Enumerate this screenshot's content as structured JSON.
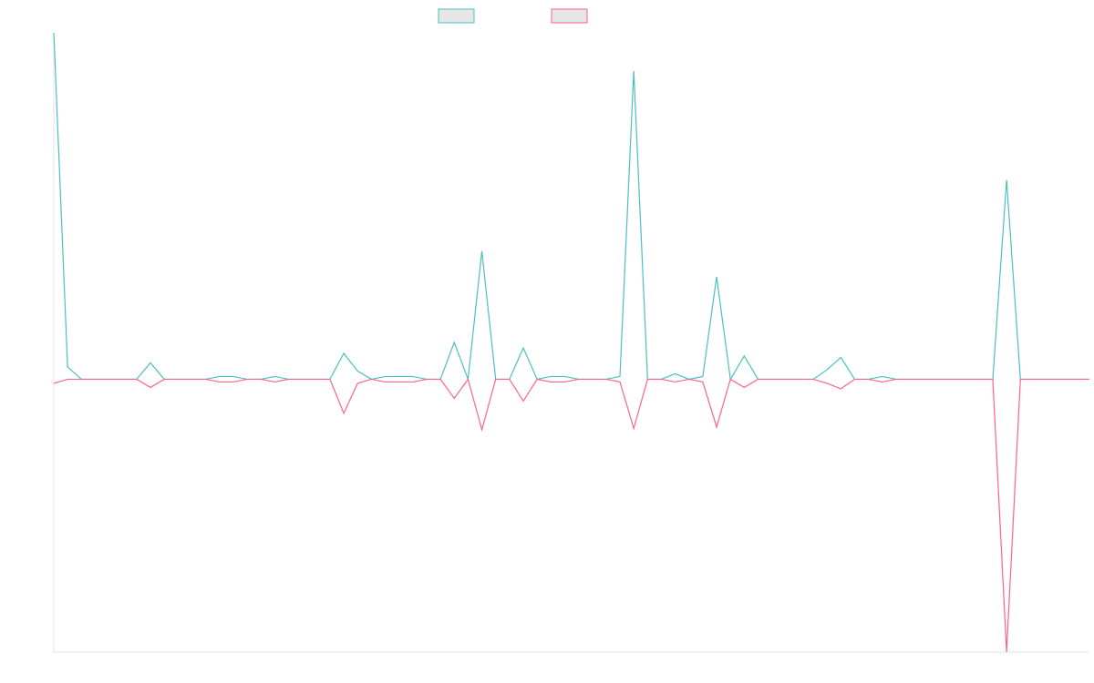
{
  "chart_data": {
    "type": "line",
    "title": "",
    "xlabel": "",
    "ylabel": "",
    "x_count": 76,
    "ylim": [
      -1,
      1.27
    ],
    "grid": false,
    "legend_position": "top-center",
    "colors": {
      "positive": "#4bc0c0",
      "negative": "#ff6384",
      "legend_fill": "#e6e6e6",
      "axis": "#e6e6e6"
    },
    "series": [
      {
        "name": "",
        "color": "#4bc0c0",
        "points": [
          {
            "x": 0,
            "y": 1.27
          },
          {
            "x": 1,
            "y": 0.045
          },
          {
            "x": 7,
            "y": 0.06
          },
          {
            "x": 12,
            "y": 0.01
          },
          {
            "x": 13,
            "y": 0.01
          },
          {
            "x": 16,
            "y": 0.01
          },
          {
            "x": 21,
            "y": 0.095
          },
          {
            "x": 22,
            "y": 0.03
          },
          {
            "x": 24,
            "y": 0.01
          },
          {
            "x": 25,
            "y": 0.01
          },
          {
            "x": 26,
            "y": 0.01
          },
          {
            "x": 29,
            "y": 0.135
          },
          {
            "x": 31,
            "y": 0.47
          },
          {
            "x": 34,
            "y": 0.115
          },
          {
            "x": 36,
            "y": 0.01
          },
          {
            "x": 37,
            "y": 0.01
          },
          {
            "x": 41,
            "y": 0.01
          },
          {
            "x": 42,
            "y": 1.13
          },
          {
            "x": 45,
            "y": 0.02
          },
          {
            "x": 47,
            "y": 0.01
          },
          {
            "x": 48,
            "y": 0.375
          },
          {
            "x": 50,
            "y": 0.085
          },
          {
            "x": 56,
            "y": 0.035
          },
          {
            "x": 57,
            "y": 0.08
          },
          {
            "x": 60,
            "y": 0.01
          },
          {
            "x": 69,
            "y": 0.73
          }
        ]
      },
      {
        "name": "",
        "color": "#ff6384",
        "points": [
          {
            "x": 0,
            "y": -0.015
          },
          {
            "x": 7,
            "y": -0.03
          },
          {
            "x": 12,
            "y": -0.01
          },
          {
            "x": 13,
            "y": -0.01
          },
          {
            "x": 16,
            "y": -0.01
          },
          {
            "x": 21,
            "y": -0.125
          },
          {
            "x": 22,
            "y": -0.015
          },
          {
            "x": 24,
            "y": -0.01
          },
          {
            "x": 25,
            "y": -0.01
          },
          {
            "x": 26,
            "y": -0.01
          },
          {
            "x": 29,
            "y": -0.07
          },
          {
            "x": 31,
            "y": -0.185
          },
          {
            "x": 34,
            "y": -0.08
          },
          {
            "x": 36,
            "y": -0.01
          },
          {
            "x": 37,
            "y": -0.01
          },
          {
            "x": 41,
            "y": -0.01
          },
          {
            "x": 42,
            "y": -0.18
          },
          {
            "x": 45,
            "y": -0.01
          },
          {
            "x": 47,
            "y": -0.01
          },
          {
            "x": 48,
            "y": -0.175
          },
          {
            "x": 50,
            "y": -0.03
          },
          {
            "x": 56,
            "y": -0.015
          },
          {
            "x": 57,
            "y": -0.035
          },
          {
            "x": 60,
            "y": -0.01
          },
          {
            "x": 69,
            "y": -1.0
          }
        ]
      }
    ]
  }
}
